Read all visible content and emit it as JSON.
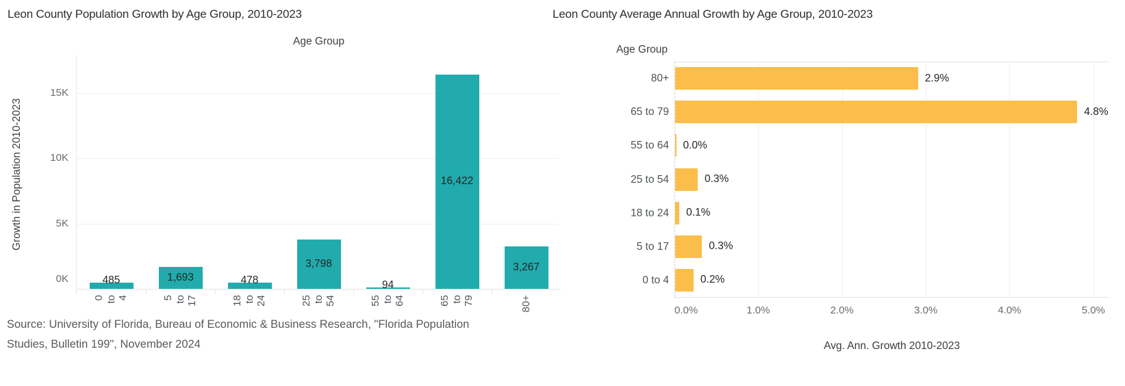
{
  "source": {
    "lines": [
      "Source: University of Florida, Bureau of Economic & Business Research, \"Florida Population",
      "Studies, Bulletin 199\", November 2024"
    ]
  },
  "colors": {
    "teal_bar": "#21ABAD",
    "orange_bar": "#FCBE4B",
    "title_text": "#2e2e2e",
    "axis_text": "#6a6a6a",
    "label_text": "#252423",
    "gridline": "#efefef",
    "background": "#ffffff"
  },
  "chart_data": [
    {
      "type": "bar",
      "orientation": "vertical",
      "title": "Leon County Population Growth by Age Group, 2010-2023",
      "x_axis_header": "Age Group",
      "ylabel": "Growth in Population 2010-2023",
      "categories": [
        "0 to 4",
        "5 to 17",
        "18 to 24",
        "25 to 54",
        "55 to 64",
        "65 to 79",
        "80+"
      ],
      "values": [
        485,
        1693,
        478,
        3798,
        94,
        16422,
        3267
      ],
      "value_labels": [
        "485",
        "1,693",
        "478",
        "3,798",
        "94",
        "16,422",
        "3,267"
      ],
      "y_ticks": [
        "0K",
        "5K",
        "10K",
        "15K"
      ],
      "y_tick_values": [
        0,
        5000,
        10000,
        15000
      ],
      "ylim": [
        0,
        17500
      ],
      "grid": "horizontal",
      "legend": "none",
      "bar_color": "#21ABAD"
    },
    {
      "type": "bar",
      "orientation": "horizontal",
      "title": "Leon County Average Annual Growth by Age Group, 2010-2023",
      "y_axis_header": "Age Group",
      "xlabel": "Avg. Ann. Growth 2010-2023",
      "categories": [
        "80+",
        "65 to 79",
        "55 to 64",
        "25 to 54",
        "18 to 24",
        "5 to 17",
        "0 to 4"
      ],
      "values": [
        2.9,
        4.8,
        0.0,
        0.3,
        0.1,
        0.3,
        0.2
      ],
      "render_values": [
        2.9,
        4.8,
        0.012,
        0.27,
        0.05,
        0.32,
        0.22
      ],
      "value_labels": [
        "2.9%",
        "4.8%",
        "0.0%",
        "0.3%",
        "0.1%",
        "0.3%",
        "0.2%"
      ],
      "x_ticks": [
        "0.0%",
        "1.0%",
        "2.0%",
        "3.0%",
        "4.0%",
        "5.0%"
      ],
      "x_tick_values": [
        0,
        1,
        2,
        3,
        4,
        5
      ],
      "xlim": [
        0,
        5.19
      ],
      "grid": "vertical",
      "legend": "none",
      "bar_color": "#FCBE4B"
    }
  ]
}
